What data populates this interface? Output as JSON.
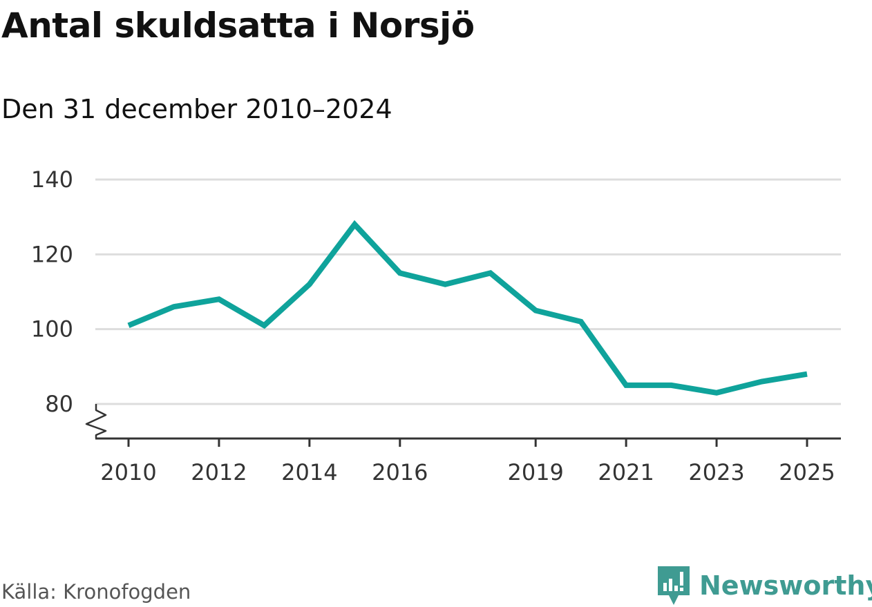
{
  "title": "Antal skuldsatta i Norsjö",
  "subtitle": "Den 31 december 2010–2024",
  "source": "Källa: Kronofogden",
  "brand": "Newsworthy",
  "colors": {
    "line": "#0fa39b",
    "grid": "#dddddd",
    "axis": "#333333",
    "brand": "#3f9b92"
  },
  "chart_data": {
    "type": "line",
    "title": "Antal skuldsatta i Norsjö",
    "subtitle": "Den 31 december 2010–2024",
    "ylim": [
      70,
      140
    ],
    "yticks": [
      80,
      100,
      120,
      140
    ],
    "xlim": [
      2010,
      2025
    ],
    "xticks": [
      "2010",
      "2012",
      "2014",
      "2016",
      "2019",
      "2021",
      "2023",
      "2025"
    ],
    "grid": true,
    "axis_break": true,
    "series": [
      {
        "x": [
          2010,
          2011,
          2012,
          2013,
          2014,
          2015,
          2016,
          2017,
          2018,
          2019,
          2020,
          2021,
          2022,
          2023,
          2024,
          2025
        ],
        "values": [
          101,
          106,
          108,
          101,
          112,
          128,
          115,
          112,
          115,
          105,
          102,
          85,
          85,
          83,
          86,
          88
        ]
      }
    ]
  }
}
